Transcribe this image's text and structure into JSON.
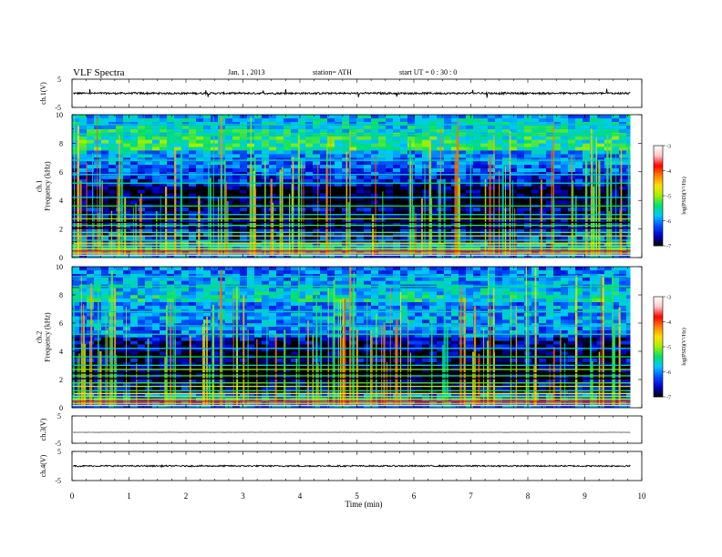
{
  "header": {
    "title": "VLF  Spectra",
    "date": "Jan.  1  , 2013",
    "station": "station= ATH",
    "start": "start  UT  =    0 : 30 : 0"
  },
  "chart_data": [
    {
      "type": "line",
      "panel": "ch1-waveform",
      "ylabel": "ch.1(V)",
      "ylim": [
        -5,
        5
      ],
      "y_tick_labels": [
        "5",
        "-5"
      ],
      "baseline": 0.0,
      "noise_amplitude": 0.35,
      "color": "#000000"
    },
    {
      "type": "heatmap",
      "panel": "ch1-spectrogram",
      "ylabel": "ch.1\nFrequency  (kHz)",
      "xlim": [
        0,
        10
      ],
      "ylim": [
        0,
        10
      ],
      "y_tick_labels": [
        "0",
        "2",
        "4",
        "6",
        "8",
        "10"
      ],
      "data_extent_min": 9.8,
      "colorbar": {
        "label": "log(PSD)(V²/Hz)",
        "range": [
          -7,
          -3
        ],
        "tick_labels": [
          "-3",
          "-4",
          "-5",
          "-6",
          "-7"
        ],
        "colors": [
          "#000000",
          "#0000c8",
          "#0050ff",
          "#00c8ff",
          "#00e070",
          "#a0f000",
          "#ffe000",
          "#ff8000",
          "#ff0000",
          "#ffc8c8",
          "#ffffff"
        ]
      }
    },
    {
      "type": "heatmap",
      "panel": "ch2-spectrogram",
      "ylabel": "ch.2\nFrequency  (kHz)",
      "xlim": [
        0,
        10
      ],
      "ylim": [
        0,
        10
      ],
      "y_tick_labels": [
        "0",
        "2",
        "4",
        "6",
        "8",
        "10"
      ],
      "data_extent_min": 9.8,
      "colorbar": {
        "label": "log(PSD)(V²/Hz)",
        "range": [
          -7,
          -3
        ],
        "tick_labels": [
          "-3",
          "-4",
          "-5",
          "-6",
          "-7"
        ],
        "colors": [
          "#000000",
          "#0000c8",
          "#0050ff",
          "#00c8ff",
          "#00e070",
          "#a0f000",
          "#ffe000",
          "#ff8000",
          "#ff0000",
          "#ffc8c8",
          "#ffffff"
        ]
      }
    },
    {
      "type": "line",
      "panel": "ch3-waveform",
      "ylabel": "ch.3(V)",
      "ylim": [
        -5,
        5
      ],
      "y_tick_labels": [
        "5",
        "-5"
      ],
      "baseline": -1.0,
      "noise_amplitude": 0.05,
      "color": "#000000"
    },
    {
      "type": "line",
      "panel": "ch4-waveform",
      "ylabel": "ch.4(V)",
      "ylim": [
        -5,
        5
      ],
      "y_tick_labels": [
        "5",
        "-5"
      ],
      "baseline": 0.0,
      "noise_amplitude": 0.25,
      "color": "#000000"
    }
  ],
  "x_axis": {
    "label": "Time  (min)",
    "range": [
      0,
      10
    ],
    "tick_labels": [
      "0",
      "1",
      "2",
      "3",
      "4",
      "5",
      "6",
      "7",
      "8",
      "9",
      "10"
    ]
  }
}
